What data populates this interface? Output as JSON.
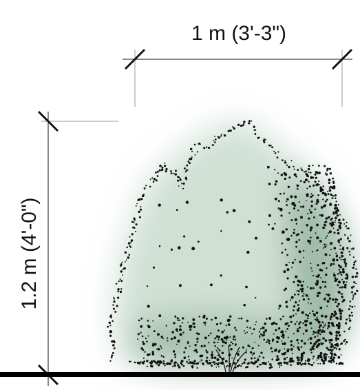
{
  "dimensions": {
    "width_label": "1 m (3'-3\")",
    "height_label": "1.2 m (4'-0\")"
  },
  "colors": {
    "ink": "#111111",
    "extension_line": "#9a9a9a",
    "foliage_wash": "#a9c6b3",
    "foliage_wash_dark": "#7fa38c",
    "ground": "#000000"
  },
  "icons": {
    "plant": "shrub-elevation-icon"
  }
}
